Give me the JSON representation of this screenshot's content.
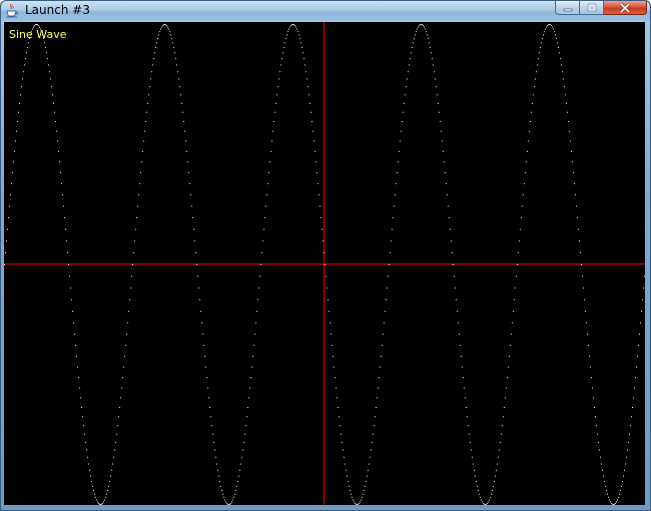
{
  "window": {
    "title": "Launch #3"
  },
  "title_controls": {
    "minimize_icon": "minimize-icon",
    "maximize_icon": "maximize-icon",
    "close_icon": "close-icon"
  },
  "app_icon": "java-cup-icon",
  "plot": {
    "label": "Sine Wave",
    "background_color": "#000000",
    "label_color": "#ffff66",
    "axis_color": "#ff0000",
    "curve_color": "#ffffff"
  },
  "chart_data": {
    "type": "scatter",
    "function": "sine",
    "cycles": 5,
    "amplitude": 1,
    "points_per_cycle": 128,
    "grid": false,
    "axes": "crosshair"
  }
}
